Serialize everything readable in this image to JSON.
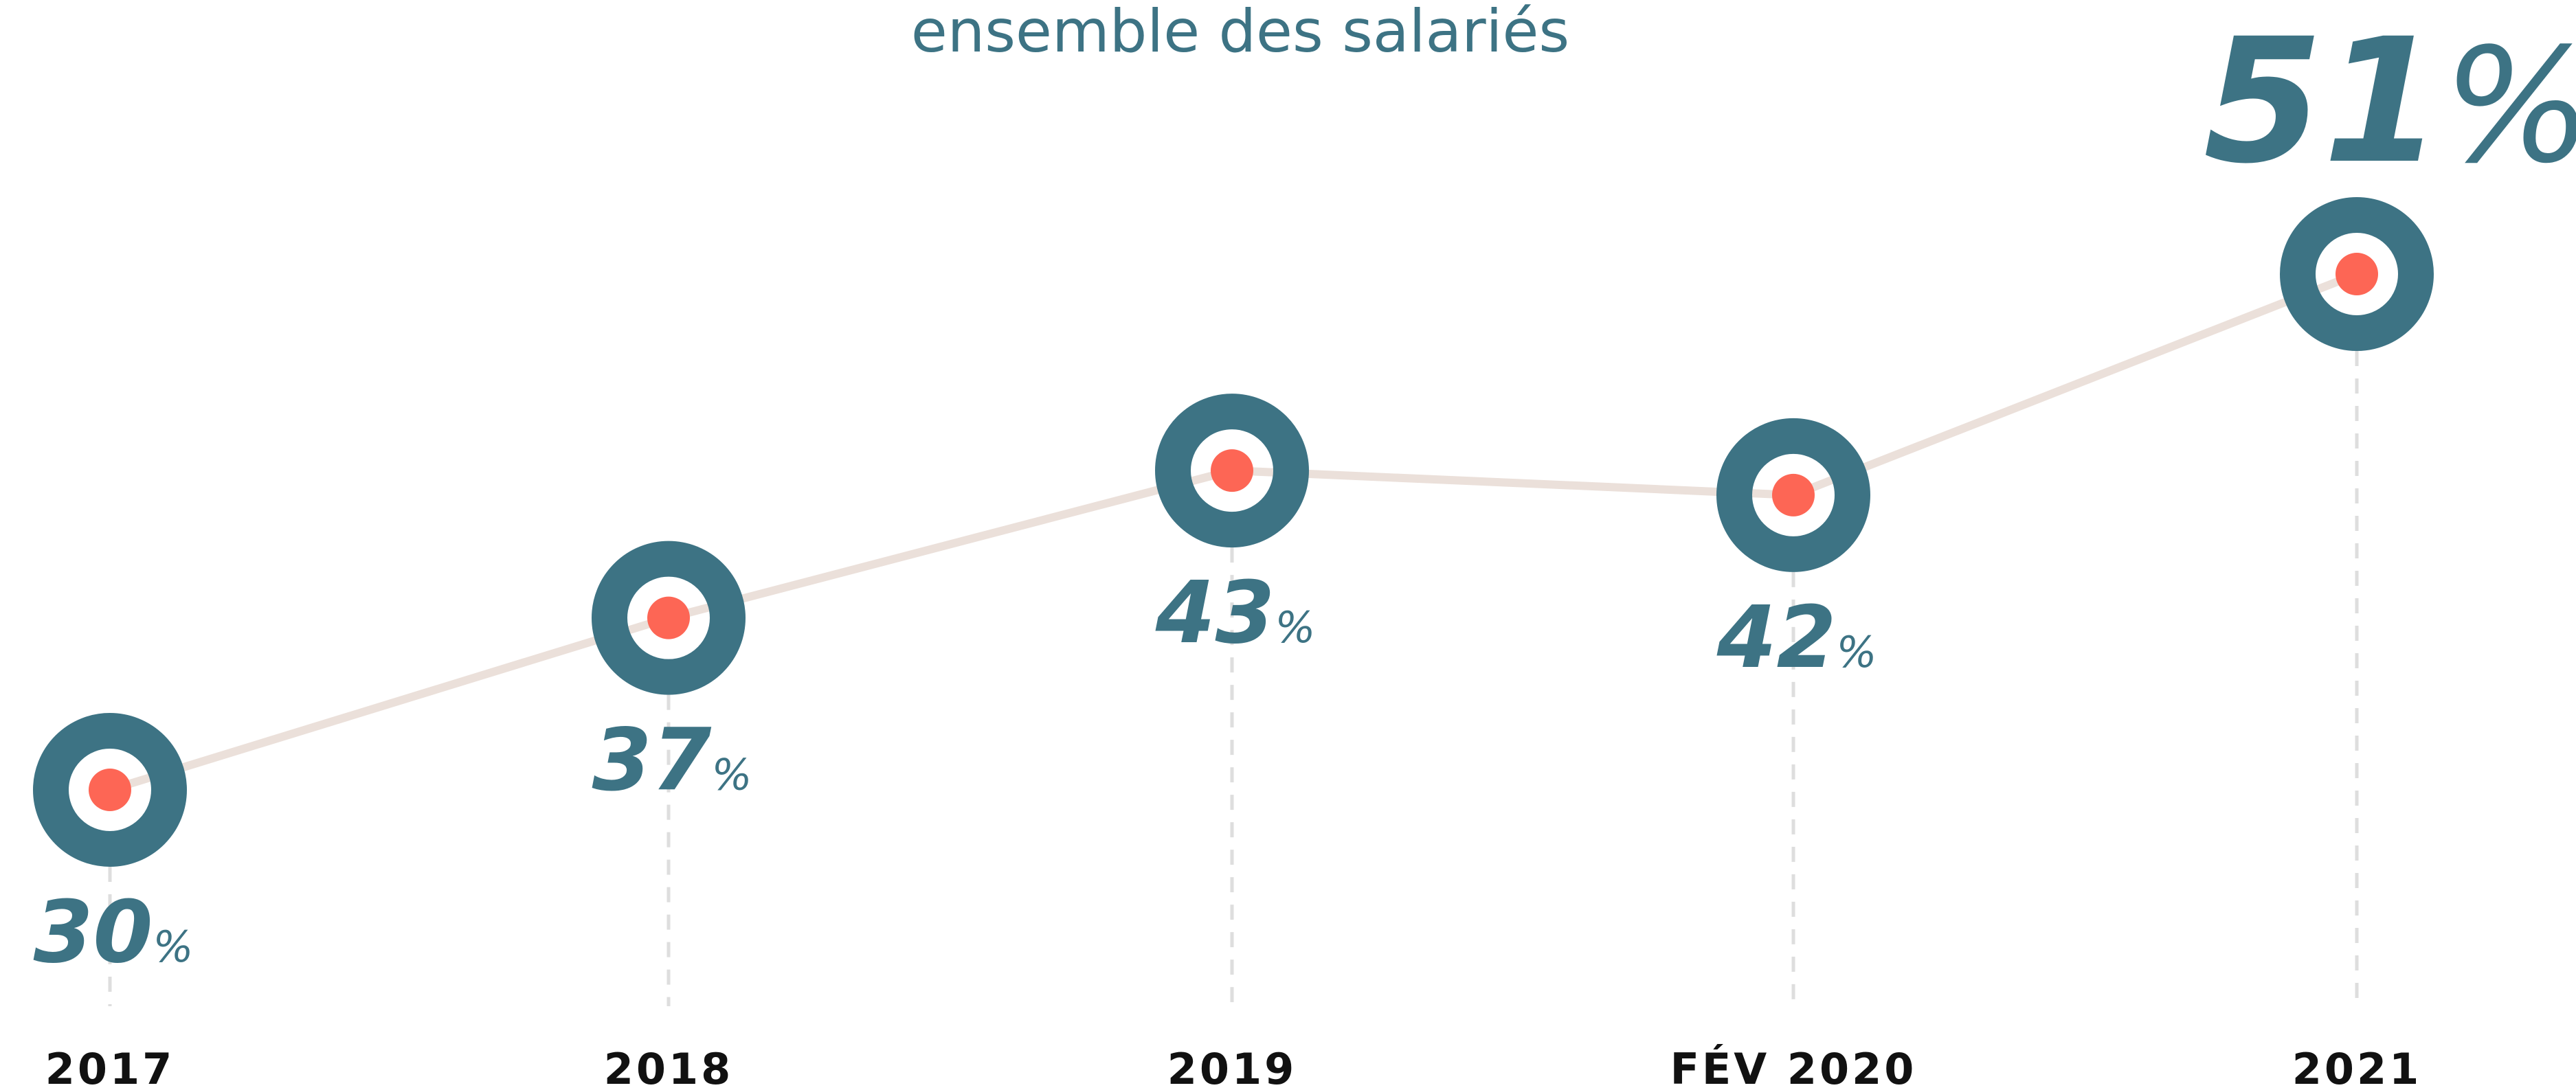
{
  "chart_data": {
    "type": "line",
    "title": "ensemble des salariés",
    "categories": [
      "2017",
      "2018",
      "2019",
      "FÉV 2020",
      "2021"
    ],
    "values": [
      30,
      37,
      43,
      42,
      51
    ],
    "value_labels": [
      "30%",
      "37%",
      "43%",
      "42%",
      "51%"
    ],
    "color": "#ebe0da",
    "marker_color": "#3d7384",
    "dot_color": "#fd6655"
  }
}
